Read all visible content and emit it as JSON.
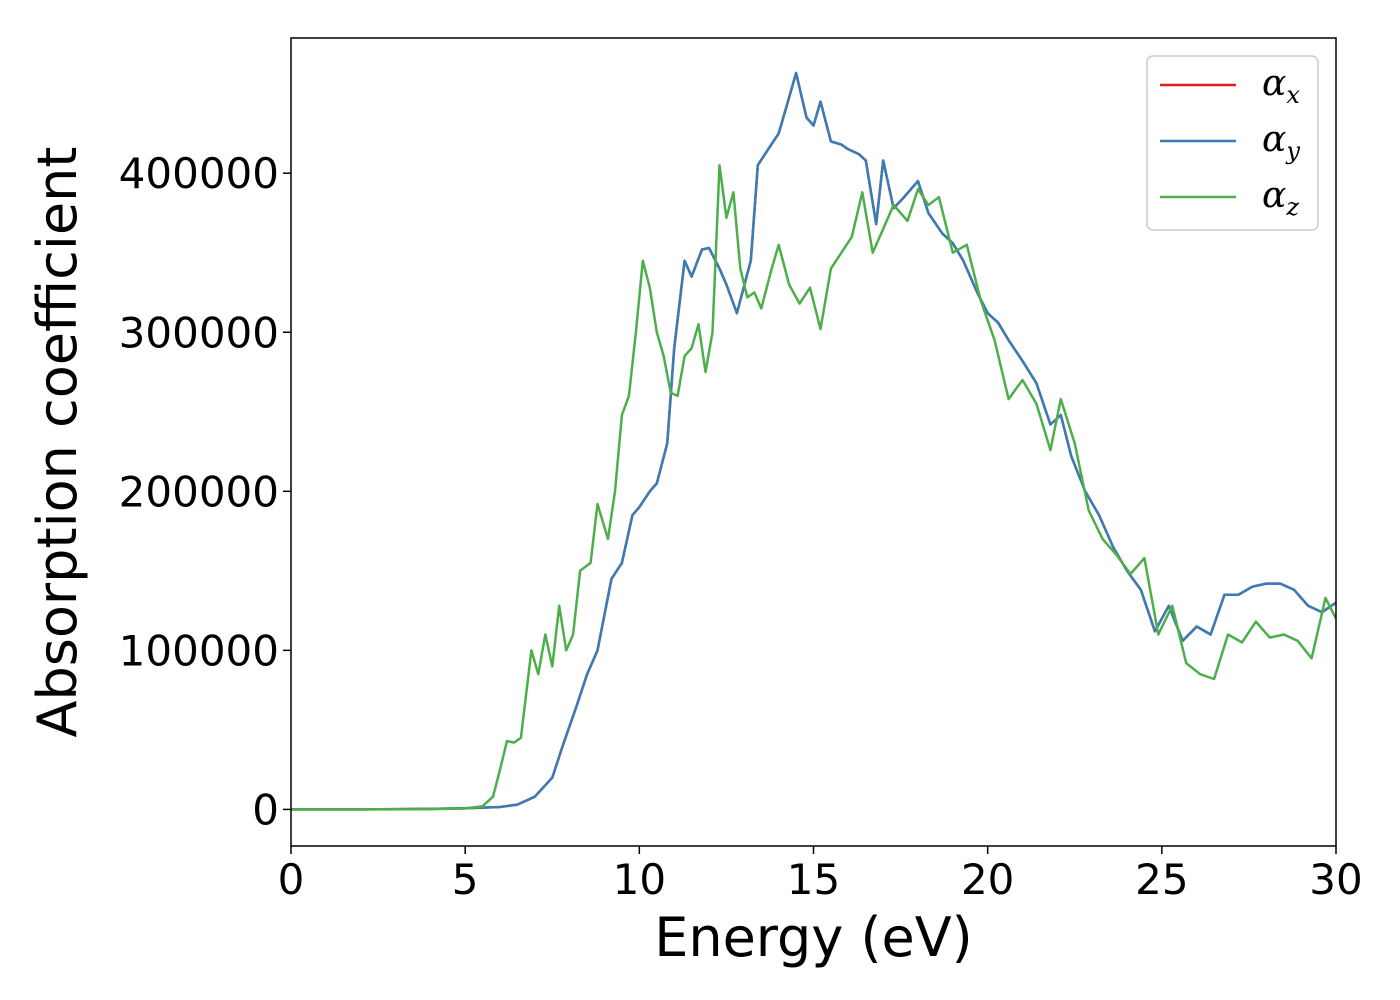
{
  "chart_data": {
    "type": "line",
    "xlabel": "Energy (eV)",
    "ylabel": "Absorption coefficient",
    "xlim": [
      0,
      30
    ],
    "ylim": [
      -23000,
      485000
    ],
    "x_ticks": [
      "0",
      "5",
      "10",
      "15",
      "20",
      "25",
      "30"
    ],
    "y_ticks": [
      "0",
      "100000",
      "200000",
      "300000",
      "400000"
    ],
    "x_tick_values": [
      0,
      5,
      10,
      15,
      20,
      25,
      30
    ],
    "y_tick_values": [
      0,
      100000,
      200000,
      300000,
      400000
    ],
    "grid": false,
    "legend_position": "top-right",
    "series": [
      {
        "name": "α",
        "sub": "x",
        "color": "#e41a1c",
        "x": [
          0,
          2,
          4,
          5,
          6,
          6.5,
          7,
          7.5,
          7.8,
          8.2,
          8.5,
          8.8,
          9.2,
          9.5,
          9.8,
          10,
          10.3,
          10.5,
          10.8,
          11,
          11.3,
          11.5,
          11.8,
          12,
          12.3,
          12.5,
          12.8,
          13.2,
          13.4,
          13.7,
          14,
          14.2,
          14.5,
          14.8,
          15,
          15.2,
          15.5,
          15.8,
          16,
          16.3,
          16.5,
          16.8,
          17,
          17.3,
          17.6,
          18,
          18.3,
          18.7,
          19,
          19.3,
          19.7,
          20,
          20.3,
          20.6,
          21,
          21.4,
          21.8,
          22.1,
          22.4,
          22.8,
          23.2,
          23.6,
          24,
          24.4,
          24.8,
          25.2,
          25.6,
          26,
          26.4,
          26.8,
          27.2,
          27.6,
          28,
          28.4,
          28.8,
          29.2,
          29.6,
          30
        ],
        "values": [
          0,
          0,
          300,
          700,
          1500,
          3000,
          8000,
          20000,
          40000,
          65000,
          85000,
          100000,
          145000,
          155000,
          185000,
          190000,
          200000,
          205000,
          230000,
          290000,
          345000,
          335000,
          352000,
          353000,
          340000,
          330000,
          312000,
          345000,
          405000,
          415000,
          425000,
          440000,
          463000,
          435000,
          430000,
          445000,
          420000,
          418000,
          415000,
          412000,
          408000,
          368000,
          408000,
          378000,
          385000,
          395000,
          375000,
          362000,
          356000,
          345000,
          325000,
          312000,
          306000,
          295000,
          282000,
          268000,
          242000,
          248000,
          222000,
          200000,
          185000,
          165000,
          150000,
          138000,
          112000,
          128000,
          106000,
          115000,
          110000,
          135000,
          135000,
          140000,
          142000,
          142000,
          138000,
          128000,
          124000,
          130000
        ]
      },
      {
        "name": "α",
        "sub": "y",
        "color": "#377eb8",
        "x": [
          0,
          2,
          4,
          5,
          6,
          6.5,
          7,
          7.5,
          7.8,
          8.2,
          8.5,
          8.8,
          9.2,
          9.5,
          9.8,
          10,
          10.3,
          10.5,
          10.8,
          11,
          11.3,
          11.5,
          11.8,
          12,
          12.3,
          12.5,
          12.8,
          13.2,
          13.4,
          13.7,
          14,
          14.2,
          14.5,
          14.8,
          15,
          15.2,
          15.5,
          15.8,
          16,
          16.3,
          16.5,
          16.8,
          17,
          17.3,
          17.6,
          18,
          18.3,
          18.7,
          19,
          19.3,
          19.7,
          20,
          20.3,
          20.6,
          21,
          21.4,
          21.8,
          22.1,
          22.4,
          22.8,
          23.2,
          23.6,
          24,
          24.4,
          24.8,
          25.2,
          25.6,
          26,
          26.4,
          26.8,
          27.2,
          27.6,
          28,
          28.4,
          28.8,
          29.2,
          29.6,
          30
        ],
        "values": [
          0,
          0,
          300,
          700,
          1500,
          3000,
          8000,
          20000,
          40000,
          65000,
          85000,
          100000,
          145000,
          155000,
          185000,
          190000,
          200000,
          205000,
          230000,
          290000,
          345000,
          335000,
          352000,
          353000,
          340000,
          330000,
          312000,
          345000,
          405000,
          415000,
          425000,
          440000,
          463000,
          435000,
          430000,
          445000,
          420000,
          418000,
          415000,
          412000,
          408000,
          368000,
          408000,
          378000,
          385000,
          395000,
          375000,
          362000,
          356000,
          345000,
          325000,
          312000,
          306000,
          295000,
          282000,
          268000,
          242000,
          248000,
          222000,
          200000,
          185000,
          165000,
          150000,
          138000,
          112000,
          128000,
          106000,
          115000,
          110000,
          135000,
          135000,
          140000,
          142000,
          142000,
          138000,
          128000,
          124000,
          130000
        ]
      },
      {
        "name": "α",
        "sub": "z",
        "color": "#4daf4a",
        "x": [
          0,
          2,
          4,
          5,
          5.5,
          5.8,
          6,
          6.2,
          6.4,
          6.6,
          6.9,
          7.1,
          7.3,
          7.5,
          7.7,
          7.9,
          8.1,
          8.3,
          8.6,
          8.8,
          9.1,
          9.3,
          9.5,
          9.7,
          9.9,
          10.1,
          10.3,
          10.5,
          10.7,
          10.9,
          11.1,
          11.3,
          11.5,
          11.7,
          11.9,
          12.1,
          12.3,
          12.5,
          12.7,
          12.9,
          13.1,
          13.3,
          13.5,
          13.8,
          14,
          14.3,
          14.6,
          14.9,
          15.2,
          15.5,
          15.8,
          16.1,
          16.4,
          16.7,
          17,
          17.3,
          17.7,
          18,
          18.3,
          18.6,
          19,
          19.4,
          19.8,
          20.2,
          20.6,
          21,
          21.4,
          21.8,
          22.1,
          22.5,
          22.9,
          23.3,
          23.7,
          24.1,
          24.5,
          24.9,
          25.3,
          25.7,
          26.1,
          26.5,
          26.9,
          27.3,
          27.7,
          28.1,
          28.5,
          28.9,
          29.3,
          29.7,
          30
        ],
        "values": [
          0,
          0,
          200,
          600,
          2000,
          8000,
          25000,
          43000,
          42000,
          45000,
          100000,
          85000,
          110000,
          90000,
          128000,
          100000,
          110000,
          150000,
          155000,
          192000,
          170000,
          200000,
          248000,
          260000,
          300000,
          345000,
          328000,
          300000,
          285000,
          262000,
          260000,
          285000,
          290000,
          305000,
          275000,
          300000,
          405000,
          372000,
          388000,
          340000,
          322000,
          325000,
          315000,
          340000,
          355000,
          330000,
          318000,
          328000,
          302000,
          340000,
          350000,
          360000,
          388000,
          350000,
          365000,
          380000,
          370000,
          390000,
          380000,
          385000,
          350000,
          355000,
          320000,
          295000,
          258000,
          270000,
          255000,
          226000,
          258000,
          230000,
          188000,
          170000,
          160000,
          148000,
          158000,
          110000,
          128000,
          92000,
          85000,
          82000,
          110000,
          105000,
          118000,
          108000,
          110000,
          106000,
          95000,
          133000,
          120000
        ]
      }
    ]
  }
}
